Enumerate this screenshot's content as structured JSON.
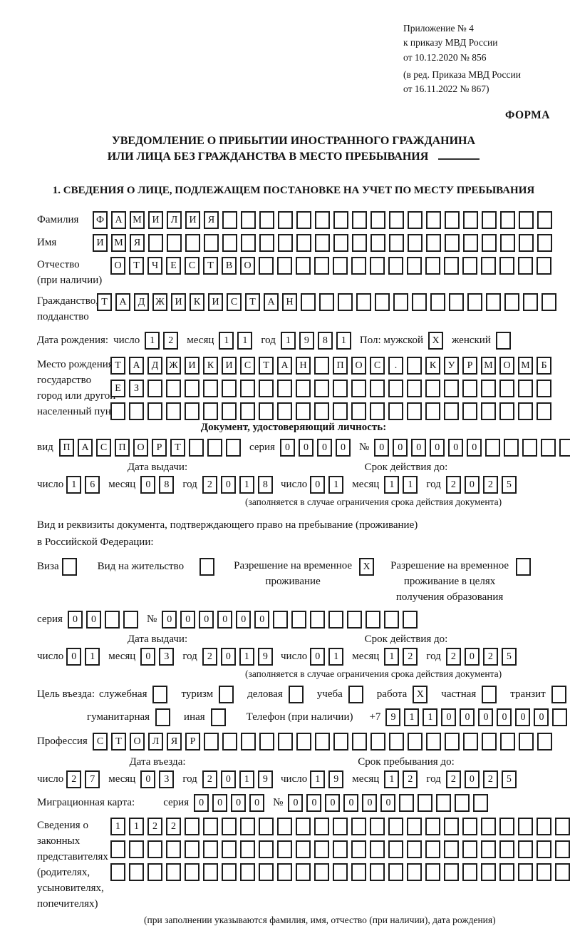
{
  "header": {
    "appendix_lines": [
      "Приложение № 4",
      "к приказу МВД России",
      "от 10.12.2020 № 856"
    ],
    "amendment_lines": [
      "(в ред. Приказа МВД России",
      "от 16.11.2022 № 867)"
    ],
    "form_label": "ФОРМА"
  },
  "title": {
    "line1": "УВЕДОМЛЕНИЕ О ПРИБЫТИИ ИНОСТРАННОГО ГРАЖДАНИНА",
    "line2": "ИЛИ ЛИЦА БЕЗ ГРАЖДАНСТВА В МЕСТО ПРЕБЫВАНИЯ"
  },
  "section1": {
    "heading": "1. СВЕДЕНИЯ О ЛИЦЕ, ПОДЛЕЖАЩЕМ ПОСТАНОВКЕ НА УЧЕТ ПО МЕСТУ ПРЕБЫВАНИЯ",
    "surname": {
      "label": "Фамилия",
      "cells": {
        "value": "ФАМИЛИЯ",
        "length": 25
      }
    },
    "firstname": {
      "label": "Имя",
      "cells": {
        "value": "ИМЯ",
        "length": 25
      }
    },
    "patronymic": {
      "label1": "Отчество",
      "label2": "(при наличии)",
      "cells": {
        "value": "ОТЧЕСТВО",
        "length": 24
      }
    },
    "citizenship": {
      "label1": "Гражданство,",
      "label2": "подданство",
      "cells": {
        "value": "ТАДЖИКИСТАН",
        "length": 25
      }
    },
    "birth_date": {
      "label": "Дата рождения:",
      "day_label": "число",
      "day": {
        "value": "12",
        "length": 2
      },
      "month_label": "месяц",
      "month": {
        "value": "11",
        "length": 2
      },
      "year_label": "год",
      "year": {
        "value": "1981",
        "length": 4
      },
      "sex_label": "Пол: мужской",
      "male": {
        "value": "X",
        "length": 1
      },
      "female_label": "женский",
      "female": {
        "value": "",
        "length": 1
      }
    },
    "birth_place": {
      "label_lines": [
        "Место рождения:",
        "государство",
        "город или другой",
        "населенный пункт"
      ],
      "row1": {
        "value": "ТАДЖИКИСТАН ПОС. КУРМОМБ",
        "length": 24
      },
      "row2": {
        "value": "ЕЗ",
        "length": 24
      },
      "row3": {
        "value": "",
        "length": 24
      }
    }
  },
  "identity_doc": {
    "heading": "Документ, удостоверяющий личность:",
    "type_label": "вид",
    "type": {
      "value": "ПАСПОРТ",
      "length": 10
    },
    "series_label": "серия",
    "series": {
      "value": "0000",
      "length": 4
    },
    "number_label": "№",
    "number": {
      "value": "000000",
      "length": 11
    },
    "issue": {
      "heading": "Дата выдачи:",
      "day_label": "число",
      "day": {
        "value": "16",
        "length": 2
      },
      "month_label": "месяц",
      "month": {
        "value": "08",
        "length": 2
      },
      "year_label": "год",
      "year": {
        "value": "2018",
        "length": 4
      }
    },
    "expiry": {
      "heading": "Срок действия до:",
      "day_label": "число",
      "day": {
        "value": "01",
        "length": 2
      },
      "month_label": "месяц",
      "month": {
        "value": "11",
        "length": 2
      },
      "year_label": "год",
      "year": {
        "value": "2025",
        "length": 4
      }
    },
    "note": "(заполняется в случае ограничения срока действия документа)"
  },
  "residence_doc": {
    "intro1": "Вид и реквизиты документа, подтверждающего право на пребывание (проживание)",
    "intro2": "в Российской Федерации:",
    "visa_label": "Виза",
    "visa": {
      "value": "",
      "length": 1
    },
    "permit_label": "Вид на жительство",
    "permit": {
      "value": "",
      "length": 1
    },
    "temp_label1": "Разрешение на временное",
    "temp_label2": "проживание",
    "temp": {
      "value": "X",
      "length": 1
    },
    "edu_label1": "Разрешение на временное",
    "edu_label2": "проживание в целях",
    "edu_label3": "получения образования",
    "edu": {
      "value": "",
      "length": 1
    },
    "series_label": "серия",
    "series": {
      "value": "00",
      "length": 4
    },
    "number_label": "№",
    "number": {
      "value": "000000",
      "length": 14
    },
    "issue": {
      "heading": "Дата выдачи:",
      "day_label": "число",
      "day": {
        "value": "01",
        "length": 2
      },
      "month_label": "месяц",
      "month": {
        "value": "03",
        "length": 2
      },
      "year_label": "год",
      "year": {
        "value": "2019",
        "length": 4
      }
    },
    "expiry": {
      "heading": "Срок действия до:",
      "day_label": "число",
      "day": {
        "value": "01",
        "length": 2
      },
      "month_label": "месяц",
      "month": {
        "value": "12",
        "length": 2
      },
      "year_label": "год",
      "year": {
        "value": "2025",
        "length": 4
      }
    },
    "note": "(заполняется в случае ограничения срока действия документа)"
  },
  "visit": {
    "purpose_label": "Цель въезда:",
    "purposes": [
      {
        "label": "служебная",
        "box": {
          "value": "",
          "length": 1
        }
      },
      {
        "label": "туризм",
        "box": {
          "value": "",
          "length": 1
        }
      },
      {
        "label": "деловая",
        "box": {
          "value": "",
          "length": 1
        }
      },
      {
        "label": "учеба",
        "box": {
          "value": "",
          "length": 1
        }
      },
      {
        "label": "работа",
        "box": {
          "value": "X",
          "length": 1
        }
      },
      {
        "label": "частная",
        "box": {
          "value": "",
          "length": 1
        }
      },
      {
        "label": "транзит",
        "box": {
          "value": "",
          "length": 1
        }
      }
    ],
    "purposes2": [
      {
        "label": "гуманитарная",
        "box": {
          "value": "",
          "length": 1
        }
      },
      {
        "label": "иная",
        "box": {
          "value": "",
          "length": 1
        }
      }
    ],
    "phone_label": "Телефон (при наличии)",
    "phone_prefix": "+7",
    "phone": {
      "value": "911000000",
      "length": 10
    },
    "profession_label": "Профессия",
    "profession": {
      "value": "СТОЛЯР",
      "length": 25
    },
    "entry": {
      "heading": "Дата въезда:",
      "day_label": "число",
      "day": {
        "value": "27",
        "length": 2
      },
      "month_label": "месяц",
      "month": {
        "value": "03",
        "length": 2
      },
      "year_label": "год",
      "year": {
        "value": "2019",
        "length": 4
      }
    },
    "stay": {
      "heading": "Срок пребывания до:",
      "day_label": "число",
      "day": {
        "value": "19",
        "length": 2
      },
      "month_label": "месяц",
      "month": {
        "value": "12",
        "length": 2
      },
      "year_label": "год",
      "year": {
        "value": "2025",
        "length": 4
      }
    },
    "migration_card_label": "Миграционная карта:",
    "mc_series_label": "серия",
    "mc_series": {
      "value": "0000",
      "length": 4
    },
    "mc_number_label": "№",
    "mc_number": {
      "value": "000000",
      "length": 11
    }
  },
  "representatives": {
    "label_lines": [
      "Сведения о",
      "законных",
      "представителях",
      "(родителях,",
      "усыновителях,",
      "попечителях)"
    ],
    "row1": {
      "value": "1122",
      "length": 25
    },
    "row2": {
      "value": "",
      "length": 25
    },
    "row3": {
      "value": "",
      "length": 25
    },
    "note": "(при заполнении указываются фамилия, имя, отчество (при наличии), дата рождения)"
  }
}
